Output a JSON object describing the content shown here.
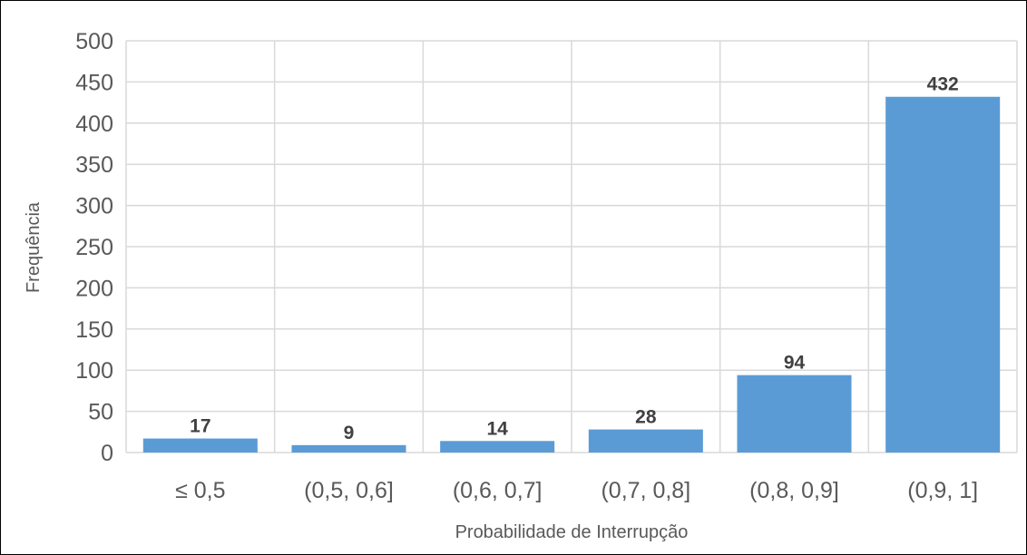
{
  "chart_data": {
    "type": "bar",
    "title": "",
    "xlabel": "Probabilidade de Interrupção",
    "ylabel": "Frequência",
    "categories": [
      "≤ 0,5",
      "(0,5, 0,6]",
      "(0,6, 0,7]",
      "(0,7, 0,8]",
      "(0,8, 0,9]",
      "(0,9, 1]"
    ],
    "values": [
      17,
      9,
      14,
      28,
      94,
      432
    ],
    "ylim": [
      0,
      500
    ],
    "yticks": [
      0,
      50,
      100,
      150,
      200,
      250,
      300,
      350,
      400,
      450,
      500
    ],
    "grid": true,
    "legend": "none",
    "colors": {
      "bar": "#5B9BD5",
      "grid": "#D9D9D9",
      "text": "#595959",
      "data_label": "#404040"
    }
  }
}
